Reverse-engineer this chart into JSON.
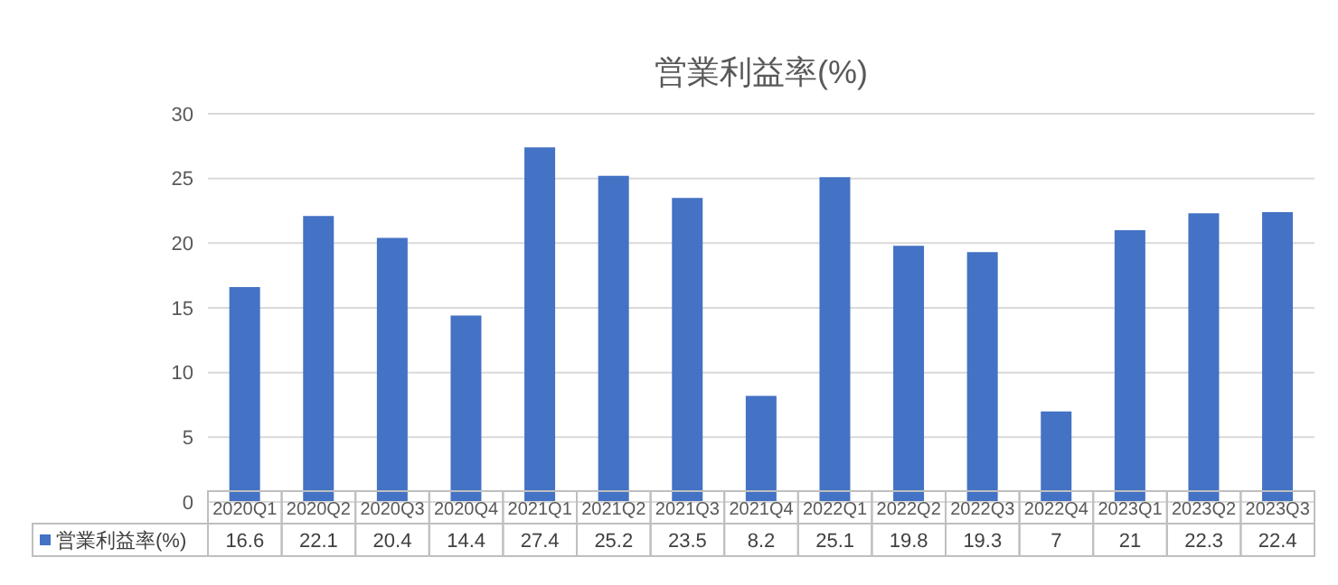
{
  "chart_data": {
    "type": "bar",
    "title": "営業利益率(%)",
    "categories": [
      "2020Q1",
      "2020Q2",
      "2020Q3",
      "2020Q4",
      "2021Q1",
      "2021Q2",
      "2021Q3",
      "2021Q4",
      "2022Q1",
      "2022Q2",
      "2022Q3",
      "2022Q4",
      "2023Q1",
      "2023Q2",
      "2023Q3"
    ],
    "series": [
      {
        "name": "営業利益率(%)",
        "color": "#4472c4",
        "values": [
          16.6,
          22.1,
          20.4,
          14.4,
          27.4,
          25.2,
          23.5,
          8.2,
          25.1,
          19.8,
          19.3,
          7,
          21,
          22.3,
          22.4
        ]
      }
    ],
    "ylim": [
      0,
      30
    ],
    "yticks": [
      0,
      5,
      10,
      15,
      20,
      25,
      30
    ],
    "grid": "y",
    "legend": "bottom",
    "data_labels": true
  }
}
